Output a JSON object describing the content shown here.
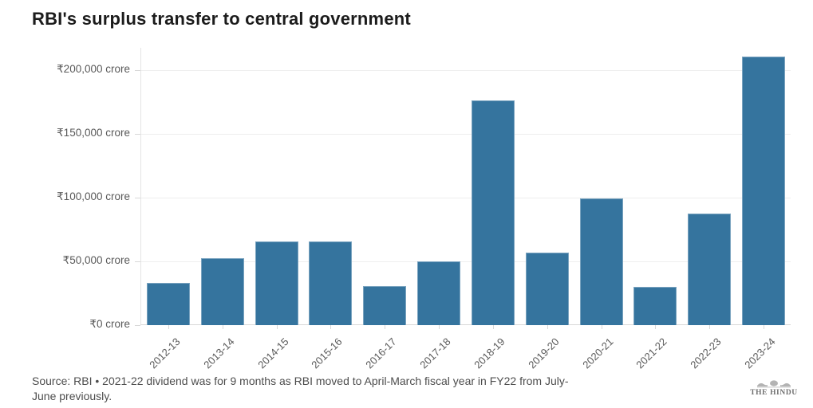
{
  "title": "RBI's surplus transfer to central government",
  "footer": {
    "source_note": "Source: RBI • 2021-22 dividend was for 9 months as RBI moved to April-March fiscal year in FY22 from July-June previously.",
    "source_note_lines": [
      "Source: RBI • 2021-22 dividend was for 9 months as RBI moved to April-March fiscal year in FY22 from July-",
      "June previously."
    ],
    "publisher": "THE HINDU"
  },
  "colors": {
    "bar": "#35749E",
    "grid": "#eeeeee",
    "axis": "#d8d8d8",
    "title_text": "#1c1c1c",
    "label_text": "#595959",
    "source_text": "#4d4d4d",
    "logo_text": "#6e6e6e"
  },
  "chart_data": {
    "type": "bar",
    "title": "RBI's surplus transfer to central government",
    "categories": [
      "2012-13",
      "2013-14",
      "2014-15",
      "2015-16",
      "2016-17",
      "2017-18",
      "2018-19",
      "2019-20",
      "2020-21",
      "2021-22",
      "2022-23",
      "2023-24"
    ],
    "values": [
      33010,
      52679,
      65896,
      65876,
      30659,
      50000,
      175988,
      57128,
      99122,
      30307,
      87416,
      210874
    ],
    "unit": "₹ crore",
    "xlabel": "",
    "ylabel": "",
    "ylim": [
      0,
      217500
    ],
    "yticks": [
      {
        "value": 0,
        "label": "₹0 crore"
      },
      {
        "value": 50000,
        "label": "₹50,000 crore"
      },
      {
        "value": 100000,
        "label": "₹100,000 crore"
      },
      {
        "value": 150000,
        "label": "₹150,000 crore"
      },
      {
        "value": 200000,
        "label": "₹200,000 crore"
      }
    ],
    "grid": true,
    "legend": false,
    "bar_color": "#35749E"
  }
}
